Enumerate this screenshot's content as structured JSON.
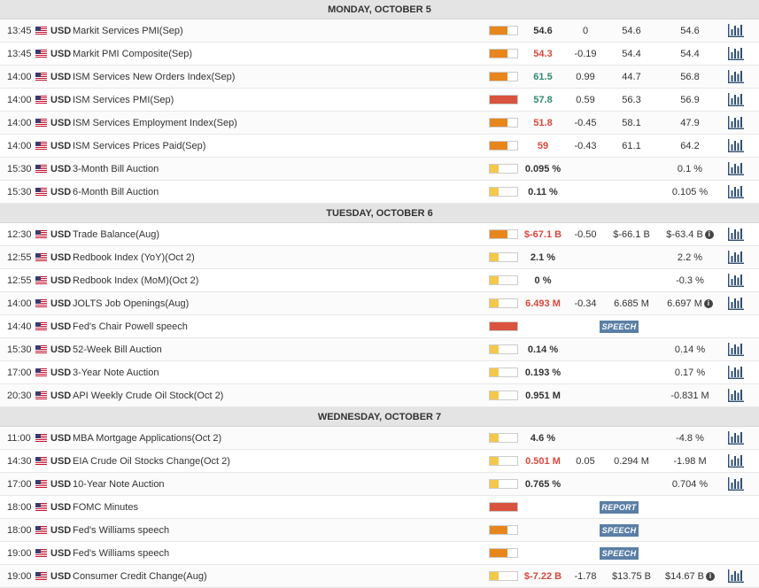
{
  "colors": {
    "importance_high": "#d9533f",
    "importance_medium": "#e8861e",
    "importance_low": "#f3c84b",
    "actual_positive": "#2e8b6f",
    "actual_negative": "#d9483b",
    "tag_bg": "#5b7fa6"
  },
  "icons": {
    "flag": "us-flag-icon",
    "chart": "bar-chart-icon",
    "info": "info-icon"
  },
  "days": [
    {
      "label": "MONDAY, OCTOBER 5",
      "events": [
        {
          "time": "13:45",
          "currency": "USD",
          "name": "Markit Services PMI(Sep)",
          "importance": "medium",
          "actual": "54.6",
          "actual_color": "neutral",
          "deviation": "0",
          "consensus": "54.6",
          "previous": "54.6",
          "chart": true
        },
        {
          "time": "13:45",
          "currency": "USD",
          "name": "Markit PMI Composite(Sep)",
          "importance": "medium",
          "actual": "54.3",
          "actual_color": "negative",
          "deviation": "-0.19",
          "consensus": "54.4",
          "previous": "54.4",
          "chart": true
        },
        {
          "time": "14:00",
          "currency": "USD",
          "name": "ISM Services New Orders Index(Sep)",
          "importance": "medium",
          "actual": "61.5",
          "actual_color": "positive",
          "deviation": "0.99",
          "consensus": "44.7",
          "previous": "56.8",
          "chart": true
        },
        {
          "time": "14:00",
          "currency": "USD",
          "name": "ISM Services PMI(Sep)",
          "importance": "high",
          "actual": "57.8",
          "actual_color": "positive",
          "deviation": "0.59",
          "consensus": "56.3",
          "previous": "56.9",
          "chart": true
        },
        {
          "time": "14:00",
          "currency": "USD",
          "name": "ISM Services Employment Index(Sep)",
          "importance": "medium",
          "actual": "51.8",
          "actual_color": "negative",
          "deviation": "-0.45",
          "consensus": "58.1",
          "previous": "47.9",
          "chart": true
        },
        {
          "time": "14:00",
          "currency": "USD",
          "name": "ISM Services Prices Paid(Sep)",
          "importance": "medium",
          "actual": "59",
          "actual_color": "negative",
          "deviation": "-0.43",
          "consensus": "61.1",
          "previous": "64.2",
          "chart": true
        },
        {
          "time": "15:30",
          "currency": "USD",
          "name": "3-Month Bill Auction",
          "importance": "low",
          "actual": "0.095 %",
          "actual_color": "neutral",
          "deviation": "",
          "consensus": "",
          "previous": "0.1 %",
          "chart": true
        },
        {
          "time": "15:30",
          "currency": "USD",
          "name": "6-Month Bill Auction",
          "importance": "low",
          "actual": "0.11 %",
          "actual_color": "neutral",
          "deviation": "",
          "consensus": "",
          "previous": "0.105 %",
          "chart": true
        }
      ]
    },
    {
      "label": "TUESDAY, OCTOBER 6",
      "events": [
        {
          "time": "12:30",
          "currency": "USD",
          "name": "Trade Balance(Aug)",
          "importance": "medium",
          "actual": "$-67.1 B",
          "actual_color": "negative",
          "deviation": "-0.50",
          "consensus": "$-66.1 B",
          "previous": "$-63.4 B",
          "previous_info": true,
          "chart": true
        },
        {
          "time": "12:55",
          "currency": "USD",
          "name": "Redbook Index (YoY)(Oct 2)",
          "importance": "low",
          "actual": "2.1 %",
          "actual_color": "neutral",
          "deviation": "",
          "consensus": "",
          "previous": "2.2 %",
          "chart": true
        },
        {
          "time": "12:55",
          "currency": "USD",
          "name": "Redbook Index (MoM)(Oct 2)",
          "importance": "low",
          "actual": "0 %",
          "actual_color": "neutral",
          "deviation": "",
          "consensus": "",
          "previous": "-0.3 %",
          "chart": true
        },
        {
          "time": "14:00",
          "currency": "USD",
          "name": "JOLTS Job Openings(Aug)",
          "importance": "low",
          "actual": "6.493 M",
          "actual_color": "negative",
          "deviation": "-0.34",
          "consensus": "6.685 M",
          "previous": "6.697 M",
          "previous_info": true,
          "chart": true
        },
        {
          "time": "14:40",
          "currency": "USD",
          "name": "Fed's Chair Powell speech",
          "importance": "high",
          "actual": "",
          "actual_color": "neutral",
          "deviation": "",
          "consensus": "",
          "previous": "",
          "tag": "SPEECH",
          "chart": false
        },
        {
          "time": "15:30",
          "currency": "USD",
          "name": "52-Week Bill Auction",
          "importance": "low",
          "actual": "0.14 %",
          "actual_color": "neutral",
          "deviation": "",
          "consensus": "",
          "previous": "0.14 %",
          "chart": true
        },
        {
          "time": "17:00",
          "currency": "USD",
          "name": "3-Year Note Auction",
          "importance": "low",
          "actual": "0.193 %",
          "actual_color": "neutral",
          "deviation": "",
          "consensus": "",
          "previous": "0.17 %",
          "chart": true
        },
        {
          "time": "20:30",
          "currency": "USD",
          "name": "API Weekly Crude Oil Stock(Oct 2)",
          "importance": "low",
          "actual": "0.951 M",
          "actual_color": "neutral",
          "deviation": "",
          "consensus": "",
          "previous": "-0.831 M",
          "chart": true
        }
      ]
    },
    {
      "label": "WEDNESDAY, OCTOBER 7",
      "events": [
        {
          "time": "11:00",
          "currency": "USD",
          "name": "MBA Mortgage Applications(Oct 2)",
          "importance": "low",
          "actual": "4.6 %",
          "actual_color": "neutral",
          "deviation": "",
          "consensus": "",
          "previous": "-4.8 %",
          "chart": true
        },
        {
          "time": "14:30",
          "currency": "USD",
          "name": "EIA Crude Oil Stocks Change(Oct 2)",
          "importance": "low",
          "actual": "0.501 M",
          "actual_color": "negative",
          "deviation": "0.05",
          "consensus": "0.294 M",
          "previous": "-1.98 M",
          "chart": true
        },
        {
          "time": "17:00",
          "currency": "USD",
          "name": "10-Year Note Auction",
          "importance": "low",
          "actual": "0.765 %",
          "actual_color": "neutral",
          "deviation": "",
          "consensus": "",
          "previous": "0.704 %",
          "chart": true
        },
        {
          "time": "18:00",
          "currency": "USD",
          "name": "FOMC Minutes",
          "importance": "high",
          "actual": "",
          "actual_color": "neutral",
          "deviation": "",
          "consensus": "",
          "previous": "",
          "tag": "REPORT",
          "chart": false
        },
        {
          "time": "18:00",
          "currency": "USD",
          "name": "Fed's Williams speech",
          "importance": "medium",
          "actual": "",
          "actual_color": "neutral",
          "deviation": "",
          "consensus": "",
          "previous": "",
          "tag": "SPEECH",
          "chart": false
        },
        {
          "time": "19:00",
          "currency": "USD",
          "name": "Fed's Williams speech",
          "importance": "medium",
          "actual": "",
          "actual_color": "neutral",
          "deviation": "",
          "consensus": "",
          "previous": "",
          "tag": "SPEECH",
          "chart": false
        },
        {
          "time": "19:00",
          "currency": "USD",
          "name": "Consumer Credit Change(Aug)",
          "importance": "low",
          "actual": "$-7.22 B",
          "actual_color": "negative",
          "deviation": "-1.78",
          "consensus": "$13.75 B",
          "previous": "$14.67 B",
          "previous_info": true,
          "chart": true
        }
      ]
    }
  ]
}
